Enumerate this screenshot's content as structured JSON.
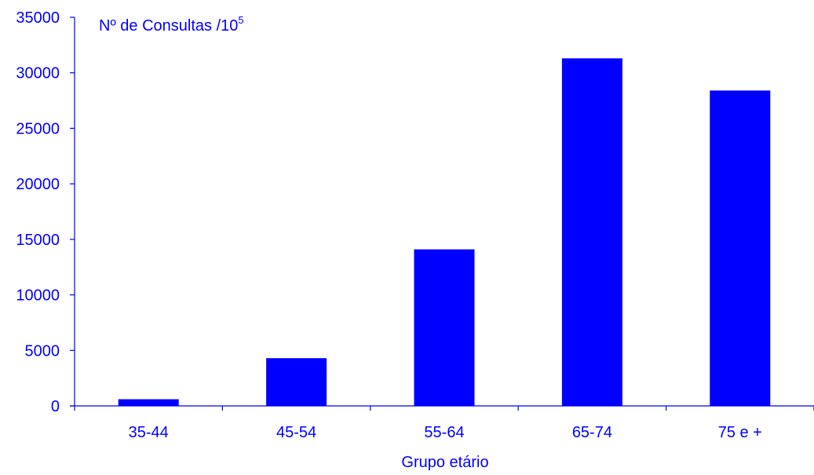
{
  "chart_data": {
    "type": "bar",
    "title": "",
    "ylabel": "Nº de Consultas /10",
    "ylabel_superscript": "5",
    "xlabel": "Grupo etário",
    "categories": [
      "35-44",
      "45-54",
      "55-64",
      "65-74",
      "75 e +"
    ],
    "values": [
      600,
      4300,
      14100,
      31300,
      28400
    ],
    "ylim": [
      0,
      35000
    ],
    "yticks": [
      0,
      5000,
      10000,
      15000,
      20000,
      25000,
      30000,
      35000
    ],
    "grid": false,
    "legend": "none",
    "colors": {
      "bar": "#0000ff",
      "axis": "#0000ff",
      "text": "#0000ff"
    }
  }
}
